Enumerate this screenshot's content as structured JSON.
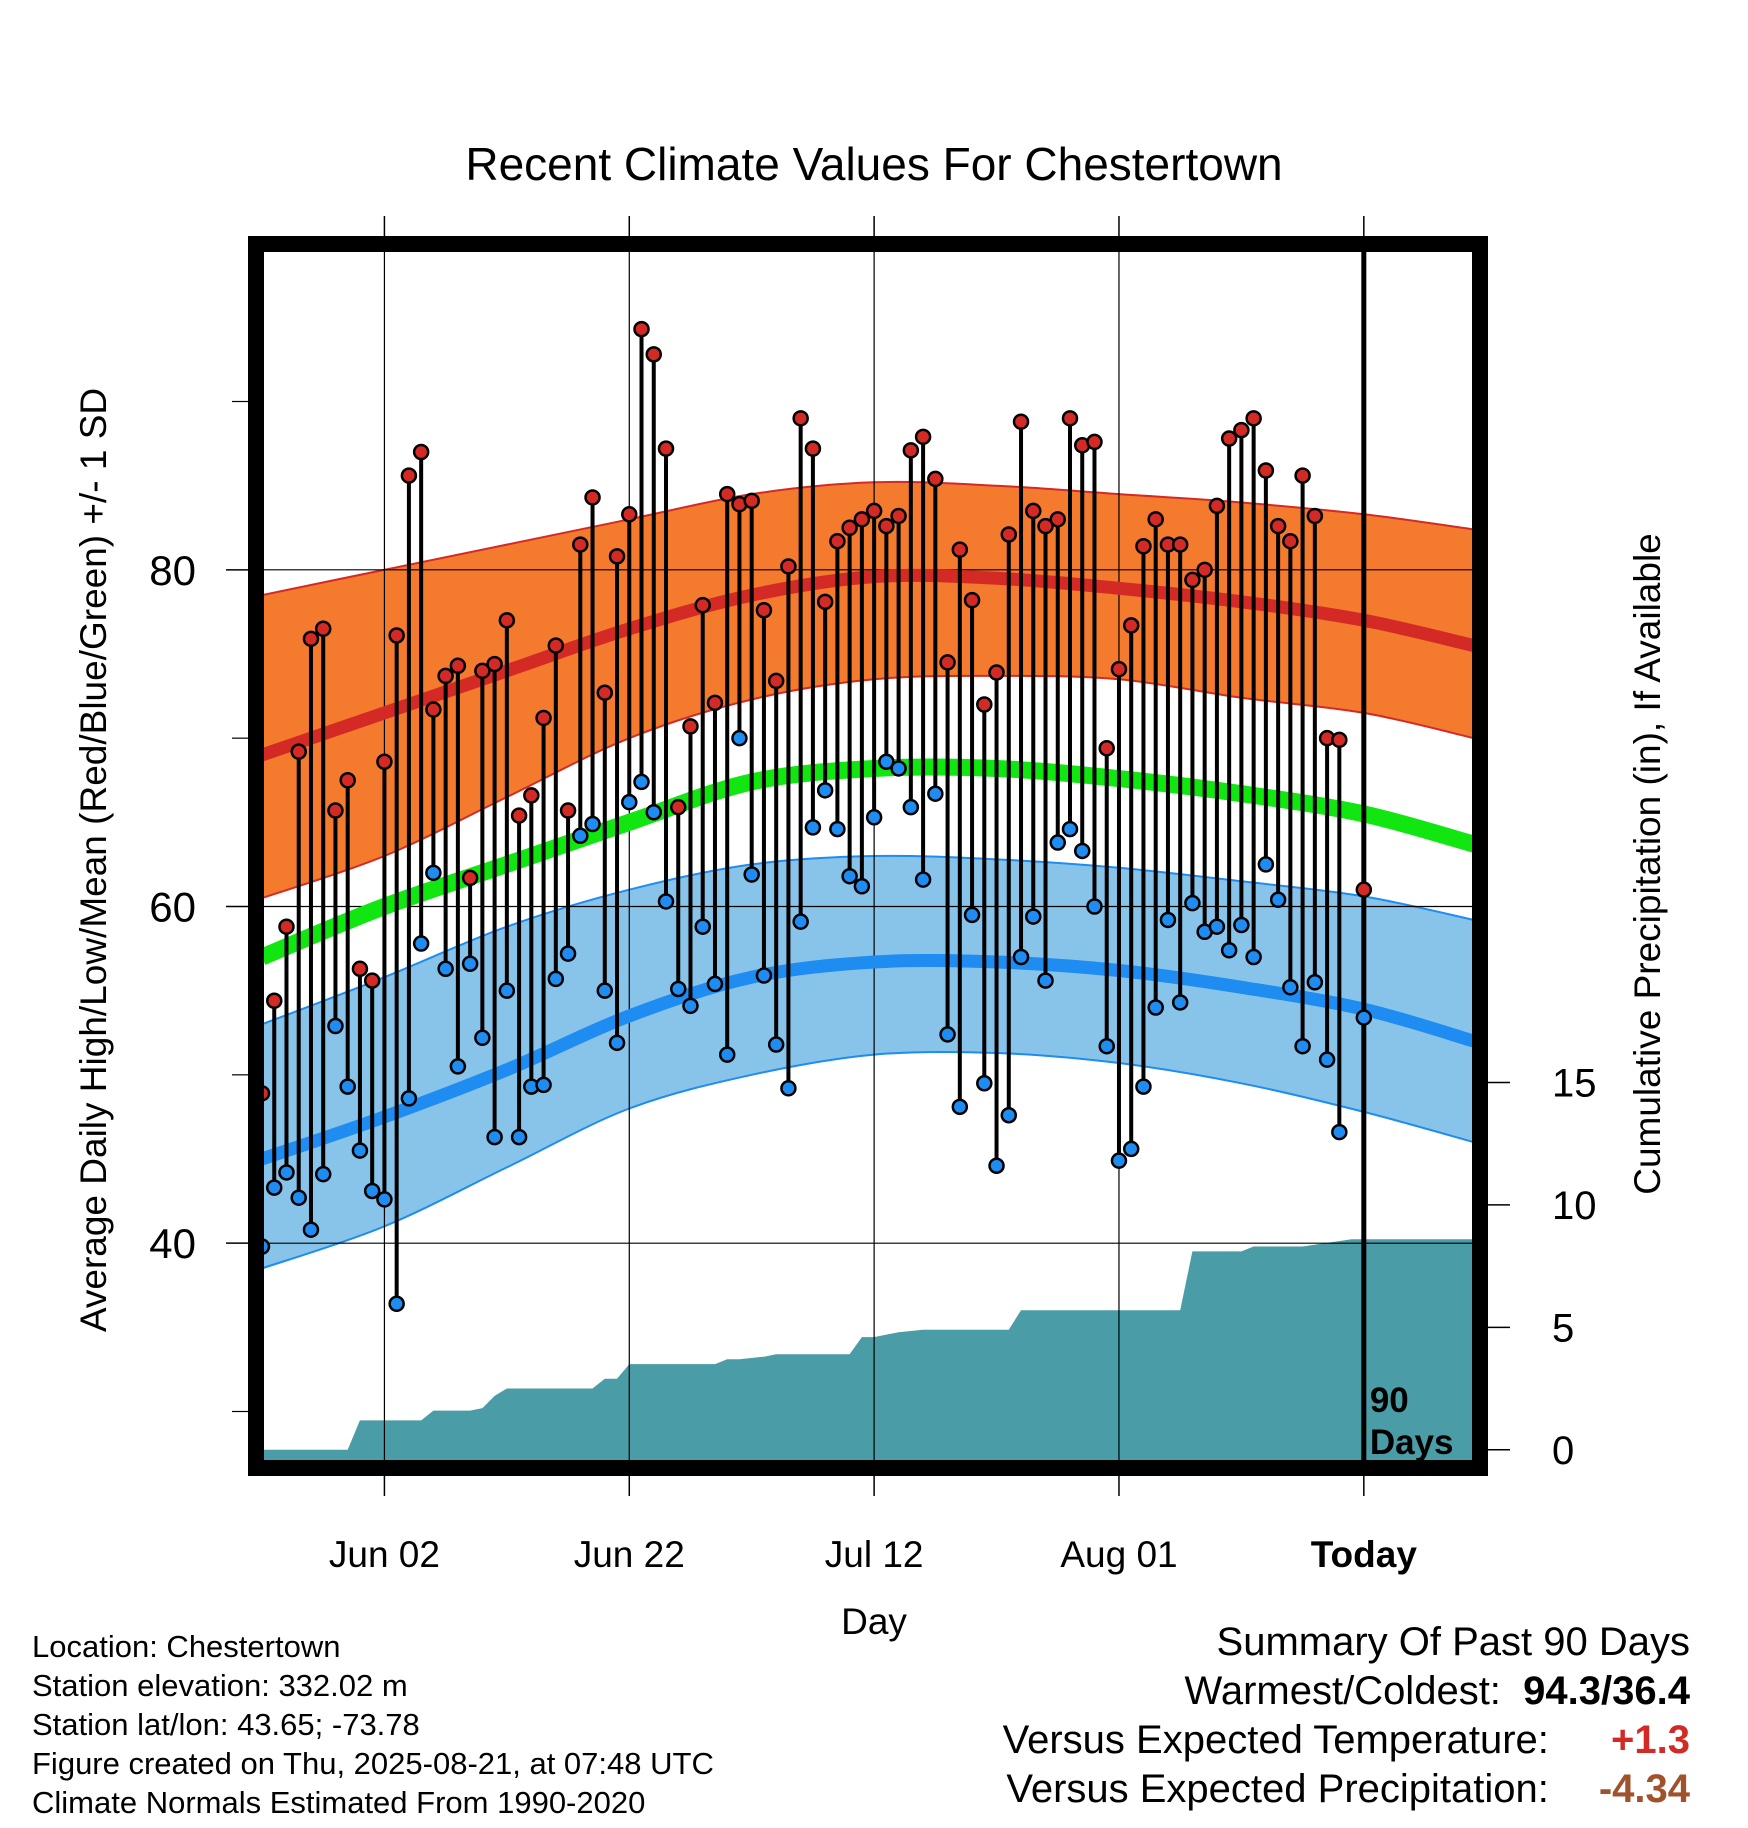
{
  "title": "Recent Climate Values For Chestertown",
  "labels": {
    "ylabel_left": "Average Daily High/Low/Mean (Red/Blue/Green) +/- 1 SD",
    "ylabel_right": "Cumulative Precipitation (in), If Available",
    "xlabel": "Day",
    "today_label_line1": "90",
    "today_label_line2": "Days"
  },
  "info": {
    "location": "Location: Chestertown",
    "elevation": "Station elevation: 332.02 m",
    "latlon": "Station lat/lon: 43.65; -73.78",
    "created": "Figure created on Thu, 2025-08-21, at 07:48 UTC",
    "normals": "Climate Normals Estimated From 1990-2020"
  },
  "summary": {
    "heading": "Summary Of Past 90 Days",
    "warm_cold_label": "Warmest/Coldest:",
    "warmest": "94.3",
    "sep": "/",
    "coldest": "36.4",
    "temp_label": "Versus Expected Temperature:",
    "temp_value": "+1.3",
    "precip_label": "Versus Expected Precipitation:",
    "precip_value": "-4.34"
  },
  "colors": {
    "high_band": "#f47a2e",
    "high_line": "#d42a26",
    "low_band": "#88c4ea",
    "low_line": "#1e8cf0",
    "mean_line": "#11e611",
    "precip": "#4a9ca6",
    "high_dot": "#d42a26",
    "low_dot": "#1e8cf0",
    "temp_value": "#d42a26",
    "precip_value": "#a0522d"
  },
  "chart_data": {
    "type": "line",
    "x_unit": "days relative to Today",
    "x_range": [
      -90,
      9
    ],
    "x_ticks": [
      {
        "x": -80,
        "label": "Jun 02"
      },
      {
        "x": -60,
        "label": "Jun 22"
      },
      {
        "x": -40,
        "label": "Jul 12"
      },
      {
        "x": -20,
        "label": "Aug 01"
      },
      {
        "x": 0,
        "label": "Today"
      }
    ],
    "y_left_range": [
      27,
      99
    ],
    "y_left_ticks": [
      40,
      60,
      80
    ],
    "y_left_minor_ticks": [
      30,
      50,
      70,
      90
    ],
    "y_right_range": [
      -0.5,
      49
    ],
    "y_right_ticks": [
      0,
      5,
      10,
      15
    ],
    "normals": {
      "x": [
        -90,
        -80,
        -70,
        -60,
        -50,
        -40,
        -30,
        -20,
        -10,
        0,
        9
      ],
      "high_mean": [
        69,
        71.5,
        74,
        76.5,
        78.5,
        79.6,
        79.5,
        78.9,
        78.1,
        77,
        75.5
      ],
      "high_plus_sd": [
        78.5,
        80,
        81.5,
        83,
        84.5,
        85.2,
        85,
        84.5,
        84,
        83.3,
        82.4
      ],
      "high_minus_sd": [
        60.5,
        63,
        66.5,
        70,
        72.3,
        73.5,
        73.7,
        73.5,
        72.4,
        71.5,
        70
      ],
      "low_mean": [
        45,
        47.5,
        50.3,
        53.5,
        55.8,
        56.7,
        56.7,
        56.2,
        55.2,
        53.9,
        52
      ],
      "low_plus_sd": [
        53,
        55.8,
        58.8,
        61,
        62.5,
        63,
        62.8,
        62.3,
        61.5,
        60.6,
        59.2
      ],
      "low_minus_sd": [
        38.5,
        41,
        44.5,
        48,
        50,
        51.2,
        51.3,
        50.7,
        49.5,
        47.8,
        46
      ],
      "mean": [
        57,
        60,
        62.5,
        65,
        67.4,
        68.2,
        68.2,
        67.6,
        66.7,
        65.5,
        63.7
      ]
    },
    "series": [
      {
        "name": "High",
        "x": [
          -90,
          -89,
          -88,
          -87,
          -86,
          -85,
          -84,
          -83,
          -82,
          -81,
          -80,
          -79,
          -78,
          -77,
          -76,
          -75,
          -74,
          -73,
          -72,
          -71,
          -70,
          -69,
          -68,
          -67,
          -66,
          -65,
          -64,
          -63,
          -62,
          -61,
          -60,
          -59,
          -58,
          -57,
          -56,
          -55,
          -54,
          -53,
          -52,
          -51,
          -50,
          -49,
          -48,
          -47,
          -46,
          -45,
          -44,
          -43,
          -42,
          -41,
          -40,
          -39,
          -38,
          -37,
          -36,
          -35,
          -34,
          -33,
          -32,
          -31,
          -30,
          -29,
          -28,
          -27,
          -26,
          -25,
          -24,
          -23,
          -22,
          -21,
          -20,
          -19,
          -18,
          -17,
          -16,
          -15,
          -14,
          -13,
          -12,
          -11,
          -10,
          -9,
          -8,
          -7,
          -6,
          -5,
          -4,
          -3,
          -2,
          -1,
          0
        ],
        "values": [
          48.9,
          54.4,
          58.8,
          69.2,
          75.9,
          76.5,
          65.7,
          67.5,
          56.3,
          55.6,
          68.6,
          76.1,
          85.6,
          87,
          71.7,
          73.7,
          74.3,
          61.7,
          74,
          74.4,
          77,
          65.4,
          66.6,
          71.2,
          75.5,
          65.7,
          81.5,
          84.3,
          72.7,
          80.8,
          83.3,
          94.3,
          92.8,
          87.2,
          65.9,
          70.7,
          77.9,
          72.1,
          84.5,
          83.9,
          84.1,
          77.6,
          73.4,
          80.2,
          89,
          87.2,
          78.1,
          81.7,
          82.5,
          83,
          83.5,
          82.6,
          83.2,
          87.1,
          87.9,
          85.4,
          74.5,
          81.2,
          78.2,
          72,
          73.9,
          82.1,
          88.8,
          83.5,
          82.6,
          83,
          89,
          87.4,
          87.6,
          69.4,
          74.1,
          76.7,
          81.4,
          83,
          81.5,
          81.5,
          79.4,
          80,
          83.8,
          87.8,
          88.3,
          89,
          85.9,
          82.6,
          81.7,
          85.6,
          83.2,
          70,
          69.9,
          null,
          61
        ]
      },
      {
        "name": "Low",
        "x": [
          -90,
          -89,
          -88,
          -87,
          -86,
          -85,
          -84,
          -83,
          -82,
          -81,
          -80,
          -79,
          -78,
          -77,
          -76,
          -75,
          -74,
          -73,
          -72,
          -71,
          -70,
          -69,
          -68,
          -67,
          -66,
          -65,
          -64,
          -63,
          -62,
          -61,
          -60,
          -59,
          -58,
          -57,
          -56,
          -55,
          -54,
          -53,
          -52,
          -51,
          -50,
          -49,
          -48,
          -47,
          -46,
          -45,
          -44,
          -43,
          -42,
          -41,
          -40,
          -39,
          -38,
          -37,
          -36,
          -35,
          -34,
          -33,
          -32,
          -31,
          -30,
          -29,
          -28,
          -27,
          -26,
          -25,
          -24,
          -23,
          -22,
          -21,
          -20,
          -19,
          -18,
          -17,
          -16,
          -15,
          -14,
          -13,
          -12,
          -11,
          -10,
          -9,
          -8,
          -7,
          -6,
          -5,
          -4,
          -3,
          -2,
          -1,
          0
        ],
        "values": [
          39.8,
          43.3,
          44.2,
          42.7,
          40.8,
          44.1,
          52.9,
          49.3,
          45.5,
          43.1,
          42.6,
          36.4,
          48.6,
          57.8,
          62,
          56.3,
          50.5,
          56.6,
          52.2,
          46.3,
          55,
          46.3,
          49.3,
          49.4,
          55.7,
          57.2,
          64.2,
          64.9,
          55,
          51.9,
          66.2,
          67.4,
          65.6,
          60.3,
          55.1,
          54.1,
          58.8,
          55.4,
          51.2,
          70,
          61.9,
          55.9,
          51.8,
          49.2,
          59.1,
          64.7,
          66.9,
          64.6,
          61.8,
          61.2,
          65.3,
          68.6,
          68.2,
          65.9,
          61.6,
          66.7,
          52.4,
          48.1,
          59.5,
          49.5,
          44.6,
          47.6,
          57,
          59.4,
          55.6,
          63.8,
          64.6,
          63.3,
          60,
          51.7,
          44.9,
          45.6,
          49.3,
          54,
          59.2,
          54.3,
          60.2,
          58.5,
          58.8,
          57.4,
          58.9,
          57,
          62.5,
          60.4,
          55.2,
          51.7,
          55.5,
          50.9,
          46.6,
          null,
          53.4
        ]
      }
    ],
    "precipitation": {
      "name": "Cumulative Precipitation",
      "x": [
        -90,
        -83,
        -82,
        -77,
        -76,
        -73,
        -72,
        -71,
        -70,
        -63,
        -62,
        -61,
        -60,
        -59,
        -53,
        -52,
        -51,
        -49,
        -48,
        -47,
        -45,
        -42,
        -41,
        -40,
        -38,
        -36,
        -29,
        -28,
        -26,
        -21,
        -20,
        -15,
        -14,
        -13,
        -12,
        -10,
        -9,
        -8,
        -7,
        -5,
        -1,
        0,
        9
      ],
      "values": [
        0,
        0,
        1.2,
        1.2,
        1.6,
        1.6,
        1.7,
        2.2,
        2.5,
        2.5,
        2.9,
        2.9,
        3.5,
        3.5,
        3.5,
        3.7,
        3.7,
        3.8,
        3.9,
        3.9,
        3.9,
        3.9,
        4.6,
        4.6,
        4.8,
        4.9,
        4.9,
        5.7,
        5.7,
        5.7,
        5.7,
        5.7,
        8.1,
        8.1,
        8.1,
        8.1,
        8.3,
        8.3,
        8.3,
        8.3,
        8.6,
        8.6,
        8.6
      ]
    }
  }
}
